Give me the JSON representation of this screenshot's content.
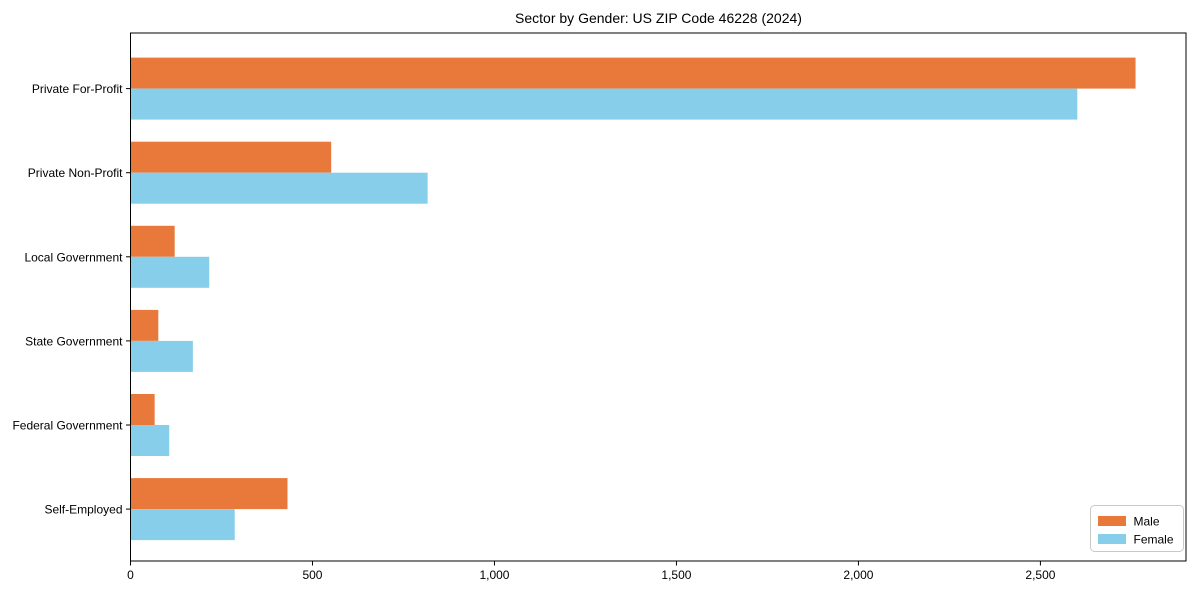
{
  "title": "Sector by Gender: US ZIP Code 46228 (2024)",
  "colors": {
    "male": "#E8793B",
    "female": "#87CEEB",
    "spine": "#000000",
    "legend_border": "#c9c9c9",
    "background": "#ffffff"
  },
  "chart_data": {
    "type": "bar",
    "orientation": "horizontal",
    "title": "Sector by Gender: US ZIP Code 46228 (2024)",
    "xlabel": "",
    "ylabel": "",
    "grid": false,
    "categories": [
      "Private For-Profit",
      "Private Non-Profit",
      "Local Government",
      "State Government",
      "Federal Government",
      "Self-Employed"
    ],
    "series": [
      {
        "name": "Male",
        "color": "#E8793B",
        "values": [
          2760,
          550,
          120,
          75,
          65,
          430
        ]
      },
      {
        "name": "Female",
        "color": "#87CEEB",
        "values": [
          2600,
          815,
          215,
          170,
          105,
          285
        ]
      }
    ],
    "xlim": [
      0,
      2900
    ],
    "xticks": [
      0,
      500,
      1000,
      1500,
      2000,
      2500
    ],
    "xtick_labels": [
      "0",
      "500",
      "1,000",
      "1,500",
      "2,000",
      "2,500"
    ],
    "legend": {
      "position": "lower right",
      "entries": [
        "Male",
        "Female"
      ]
    }
  }
}
